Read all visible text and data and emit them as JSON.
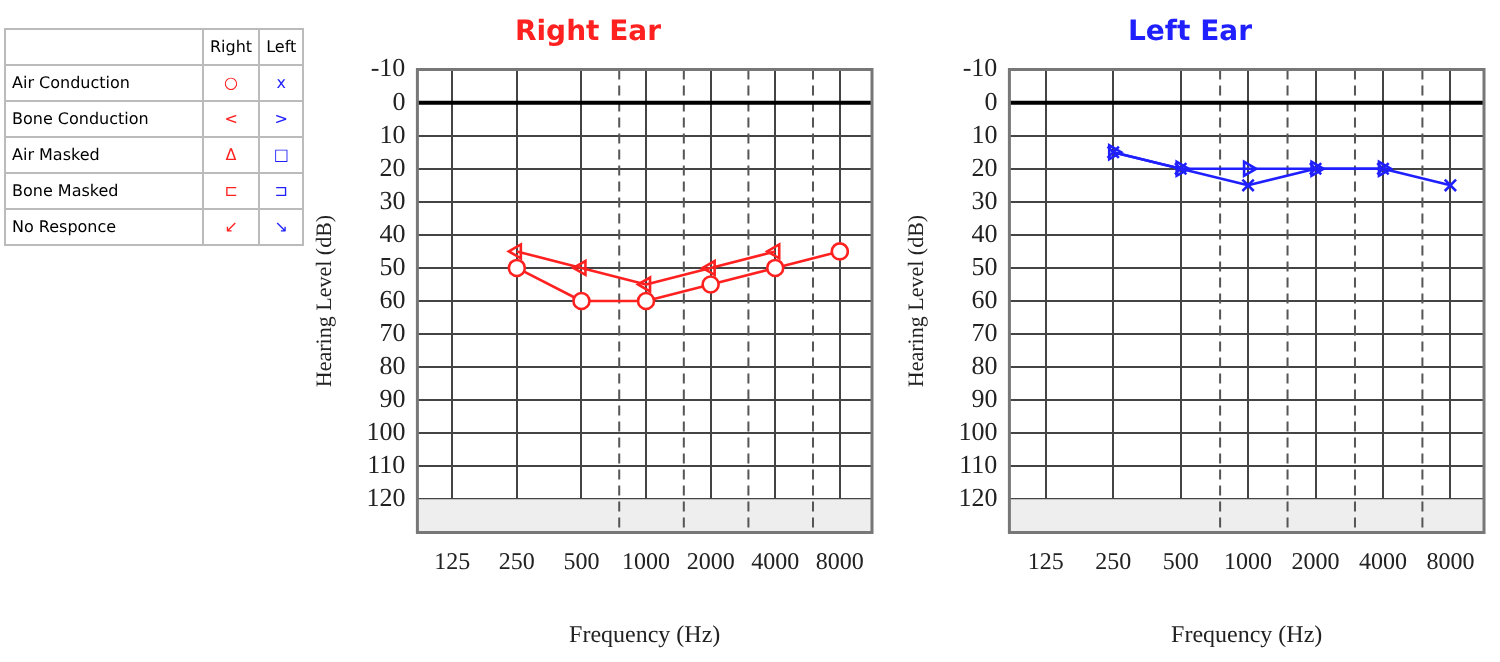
{
  "chart_data": [
    {
      "type": "other",
      "categories": [
        "Right",
        "Left"
      ],
      "colors": [
        "#ff2020",
        "#2020ff"
      ],
      "y_categories": [
        "Air Conduction",
        "Bone Conduction",
        "Air Masked",
        "Bone Masked",
        "No Responce"
      ],
      "cell_labels": [
        [
          "○",
          "x"
        ],
        [
          "<",
          ">"
        ],
        [
          "Δ",
          "□"
        ],
        [
          "⊏",
          "⊐"
        ],
        [
          "↙",
          "↘"
        ]
      ]
    },
    {
      "type": "line",
      "title": "Right Ear",
      "xlabel": "Frequency (Hz)",
      "ylabel": "Hearing Level (dB)",
      "log": "x",
      "xlim": [
        86,
        11300
      ],
      "xticks": [
        125,
        250,
        500,
        1000,
        2000,
        4000,
        8000
      ],
      "ylim": [
        130,
        -10
      ],
      "yticks": [
        -10,
        0,
        10,
        20,
        30,
        40,
        50,
        60,
        70,
        80,
        90,
        100,
        110,
        120
      ],
      "grid": true,
      "series": [
        {
          "color": "#ff2020",
          "marker": "circle",
          "x": [
            250,
            500,
            1000,
            2000,
            4000,
            8000
          ],
          "values": [
            50,
            60,
            60,
            55,
            50,
            45
          ]
        },
        {
          "color": "#ff2020",
          "marker": "triangle",
          "x": [
            250,
            500,
            1000,
            2000,
            4000
          ],
          "values": [
            45,
            50,
            55,
            50,
            45
          ]
        }
      ],
      "ref_lines": [
        {
          "axis": "x",
          "value": 750,
          "line_style": "dashed",
          "color": "#555555"
        },
        {
          "axis": "x",
          "value": 1500,
          "line_style": "dashed",
          "color": "#555555"
        },
        {
          "axis": "x",
          "value": 3000,
          "line_style": "dashed",
          "color": "#555555"
        },
        {
          "axis": "x",
          "value": 6000,
          "line_style": "dashed",
          "color": "#555555"
        },
        {
          "axis": "y",
          "value": 0,
          "line_style": "solid",
          "color": "#000000"
        }
      ],
      "bands": [
        {
          "axis": "y",
          "from": 120,
          "to": 130,
          "color": "#eeeeee"
        }
      ]
    },
    {
      "type": "line",
      "title": "Left Ear",
      "xlabel": "Frequency (Hz)",
      "ylabel": "Hearing Level (dB)",
      "log": "x",
      "xlim": [
        86,
        11300
      ],
      "xticks": [
        125,
        250,
        500,
        1000,
        2000,
        4000,
        8000
      ],
      "ylim": [
        130,
        -10
      ],
      "yticks": [
        -10,
        0,
        10,
        20,
        30,
        40,
        50,
        60,
        70,
        80,
        90,
        100,
        110,
        120
      ],
      "grid": true,
      "series": [
        {
          "color": "#2020ff",
          "marker": "cross",
          "x": [
            250,
            500,
            1000,
            2000,
            4000,
            8000
          ],
          "values": [
            15,
            20,
            25,
            20,
            20,
            25
          ]
        },
        {
          "color": "#2020ff",
          "marker": "triangle",
          "x": [
            250,
            500,
            1000,
            2000,
            4000
          ],
          "values": [
            15,
            20,
            20,
            20,
            20
          ]
        }
      ],
      "ref_lines": [
        {
          "axis": "x",
          "value": 750,
          "line_style": "dashed",
          "color": "#555555"
        },
        {
          "axis": "x",
          "value": 1500,
          "line_style": "dashed",
          "color": "#555555"
        },
        {
          "axis": "x",
          "value": 3000,
          "line_style": "dashed",
          "color": "#555555"
        },
        {
          "axis": "x",
          "value": 6000,
          "line_style": "dashed",
          "color": "#555555"
        },
        {
          "axis": "y",
          "value": 0,
          "line_style": "solid",
          "color": "#000000"
        }
      ],
      "bands": [
        {
          "axis": "y",
          "from": 120,
          "to": 130,
          "color": "#eeeeee"
        }
      ]
    }
  ]
}
